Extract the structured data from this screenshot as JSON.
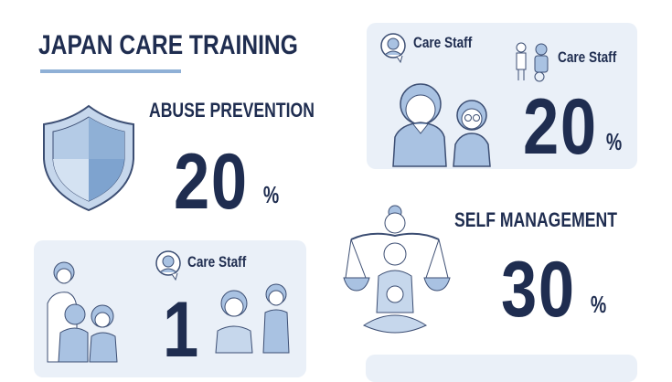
{
  "title": "JAPAN CARE TRAINING",
  "colors": {
    "text": "#1f2d50",
    "accent": "#8fb0d6",
    "panel": "#eaf0f8",
    "figure": "#a9c2e2",
    "stroke": "#3c4e73"
  },
  "sections": {
    "abuse_prevention": {
      "heading": "ABUSE PREVENTION",
      "value": "20",
      "unit": "%",
      "icon": "shield-icon"
    },
    "top_panel": {
      "label_1": "Care Staff",
      "label_2": "Care Staff",
      "value": "20",
      "unit": "%"
    },
    "self_management": {
      "heading": "SELF MANAGEMENT",
      "value": "30",
      "unit": "%",
      "icon": "balance-scale-person-icon"
    },
    "bottom_panel": {
      "label": "Care Staff",
      "value": "1"
    }
  }
}
